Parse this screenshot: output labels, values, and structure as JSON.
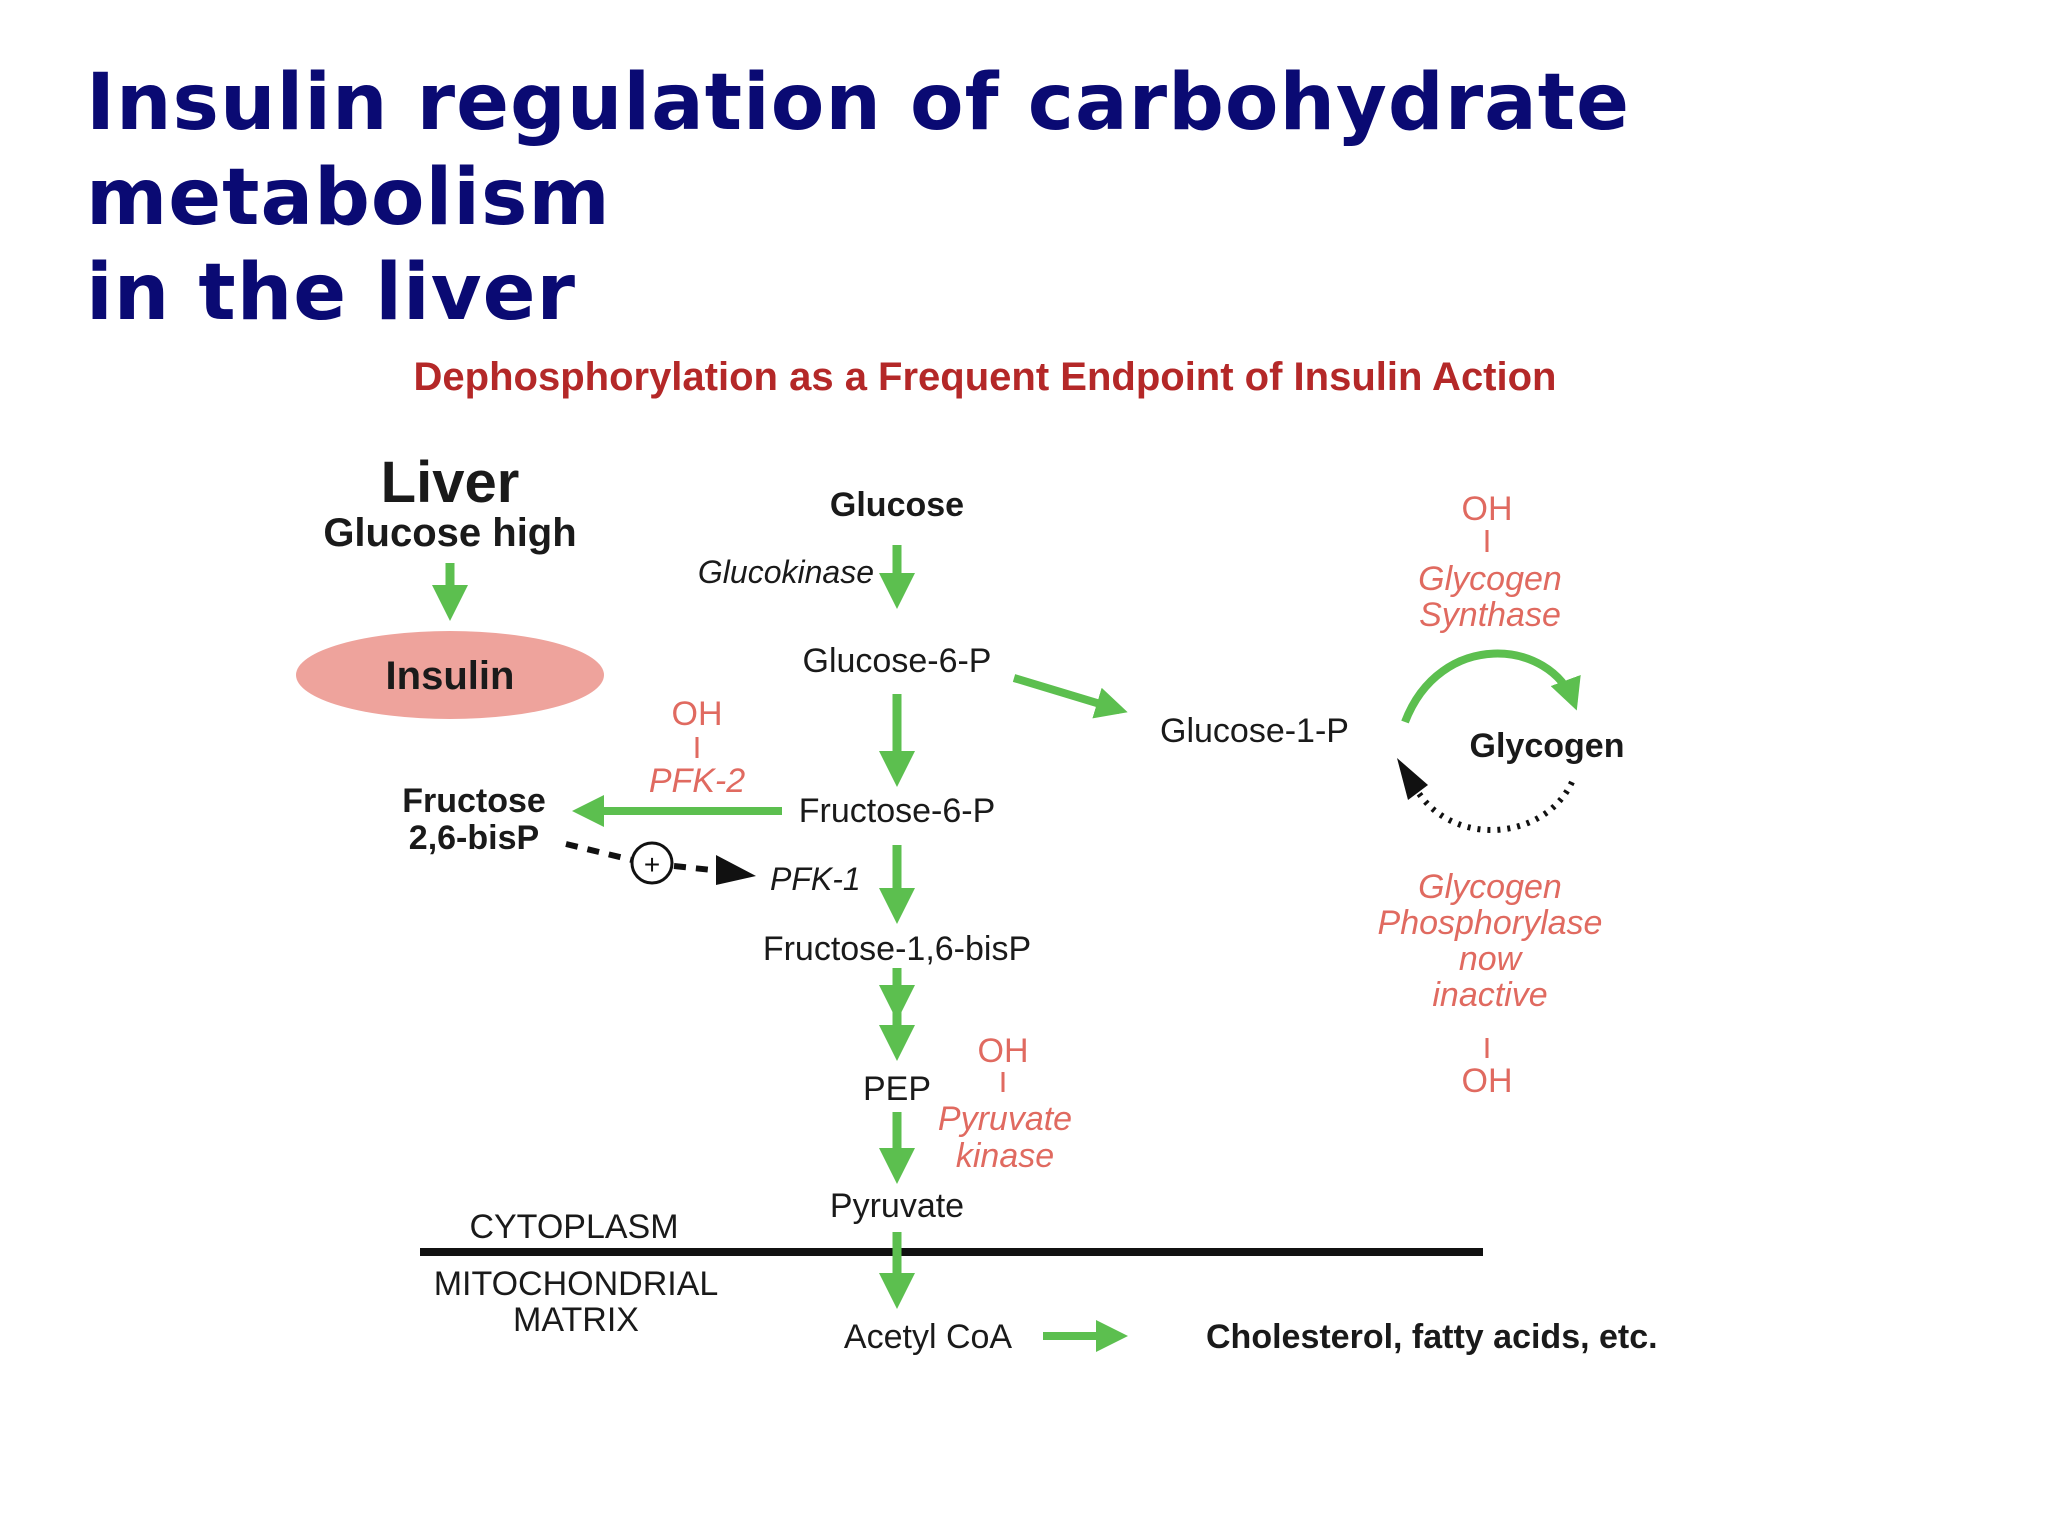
{
  "slide": {
    "title_line1": "Insulin regulation of carbohydrate metabolism",
    "title_line2": "in the liver"
  },
  "diagram": {
    "title": "Dephosphorylation as a Frequent Endpoint of Insulin Action",
    "liver": "Liver",
    "glucose_high": "Glucose high",
    "insulin": "Insulin",
    "glucose": "Glucose",
    "glucokinase": "Glucokinase",
    "glucose_6_p": "Glucose-6-P",
    "glucose_1_p": "Glucose-1-P",
    "glycogen": "Glycogen",
    "gs_oh": "OH",
    "gs_line1": "Glycogen",
    "gs_line2": "Synthase",
    "gp_line1": "Glycogen",
    "gp_line2": "Phosphorylase",
    "gp_line3": "now",
    "gp_line4": "inactive",
    "gp_oh": "OH",
    "fructose_6_p": "Fructose-6-P",
    "pfk2_oh": "OH",
    "pfk2": "PFK-2",
    "fructose_26_line1": "Fructose",
    "fructose_26_line2": "2,6-bisP",
    "plus": "+",
    "pfk1": "PFK-1",
    "fructose_16": "Fructose-1,6-bisP",
    "pep": "PEP",
    "pk_oh": "OH",
    "pk_line1": "Pyruvate",
    "pk_line2": "kinase",
    "pyruvate": "Pyruvate",
    "cytoplasm": "CYTOPLASM",
    "mito_line1": "MITOCHONDRIAL",
    "mito_line2": "MATRIX",
    "acetyl_coa": "Acetyl CoA",
    "products": "Cholesterol, fatty acids, etc."
  },
  "colors": {
    "title": "#0a0a73",
    "diagram_title": "#b42828",
    "arrow": "#5cbf4f",
    "enzyme_red": "#e06a60",
    "insulin_ellipse": "#eea39c"
  }
}
